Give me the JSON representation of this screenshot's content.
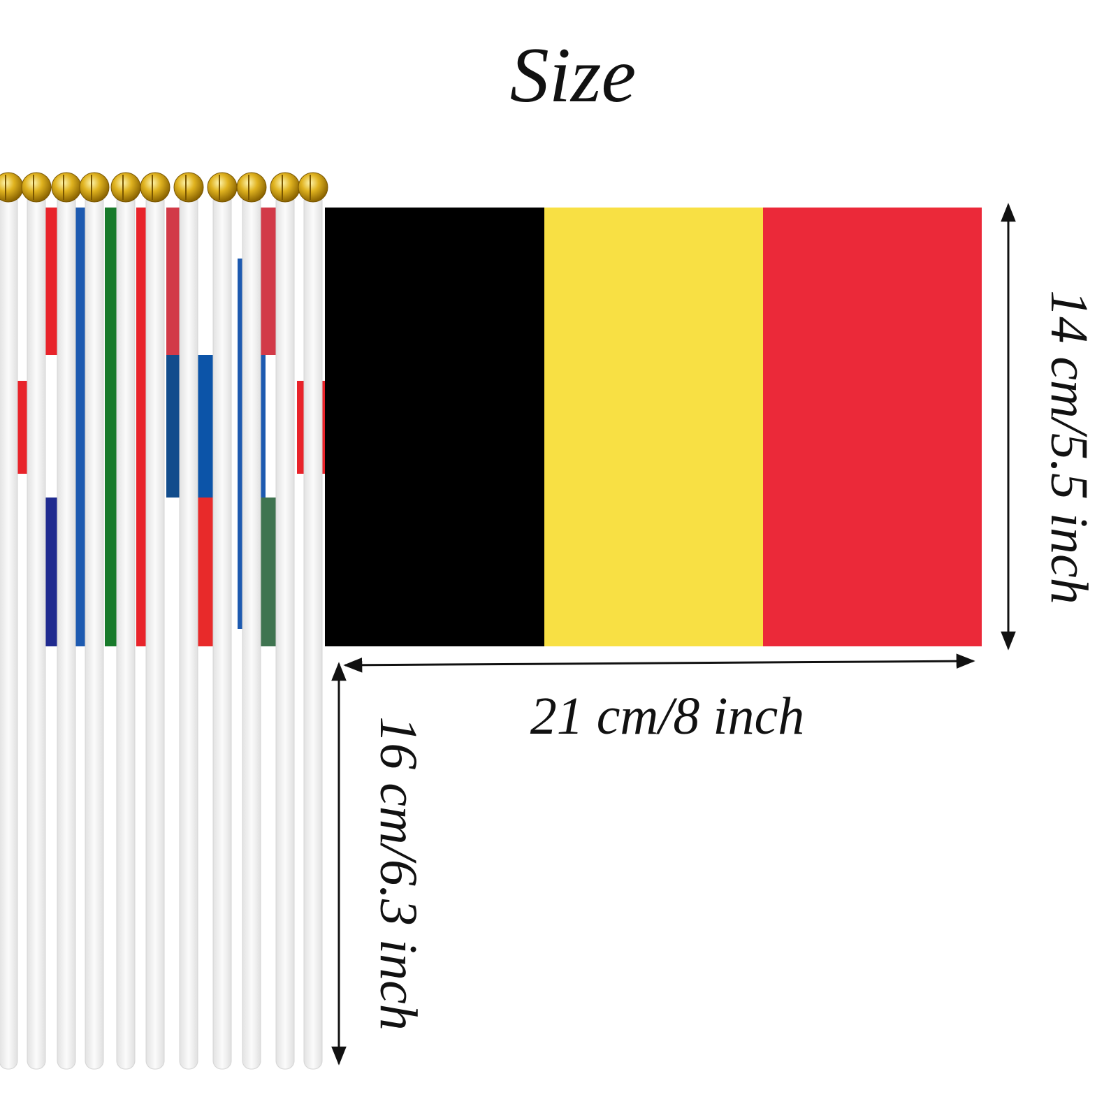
{
  "title": "Size",
  "dimensions": {
    "height": "14 cm/5.5 inch",
    "width": "21 cm/8 inch",
    "stick": "16 cm/6.3 inch"
  }
}
